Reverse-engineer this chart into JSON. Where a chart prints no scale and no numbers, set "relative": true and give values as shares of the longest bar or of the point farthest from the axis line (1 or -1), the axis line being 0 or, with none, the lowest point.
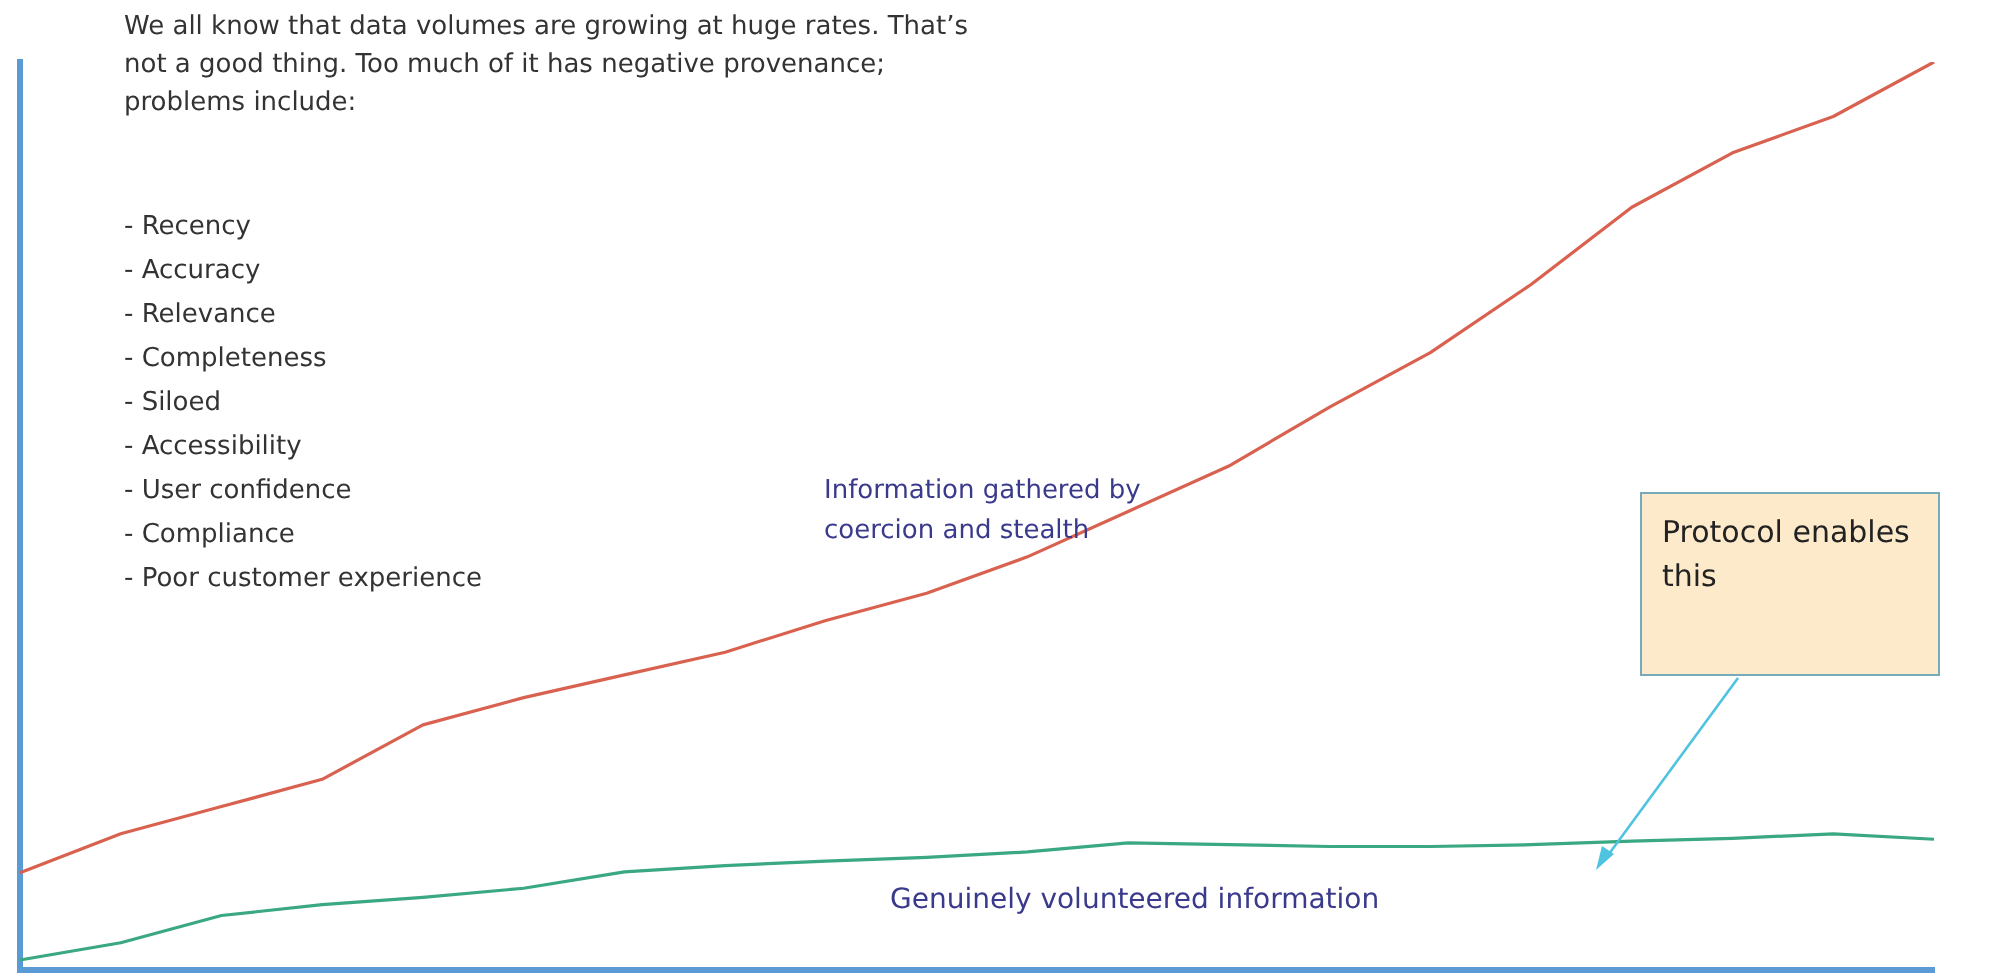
{
  "chart_data": {
    "type": "line",
    "relative": true,
    "legend": false,
    "grid": false,
    "marker": "none",
    "categories": [
      null,
      null,
      null,
      null,
      null,
      null,
      null,
      null,
      null,
      null,
      null,
      null,
      null,
      null,
      null,
      null,
      null,
      null,
      null,
      null
    ],
    "series": [
      {
        "name": "Information gathered by coercion and stealth",
        "color": "#d9614f",
        "values": [
          0.107,
          0.15,
          0.18,
          0.21,
          0.27,
          0.3,
          0.325,
          0.35,
          0.385,
          0.415,
          0.455,
          0.505,
          0.555,
          0.62,
          0.68,
          0.755,
          0.84,
          0.9,
          0.94,
          1
        ]
      },
      {
        "name": "Genuinely volunteered information",
        "color": "#3aa880",
        "values": [
          0.011,
          0.03,
          0.06,
          0.072,
          0.08,
          0.09,
          0.108,
          0.115,
          0.12,
          0.124,
          0.13,
          0.14,
          0.138,
          0.136,
          0.136,
          0.138,
          0.142,
          0.145,
          0.15,
          0.144
        ]
      }
    ],
    "annotations": [
      "We all know that data volumes are growing at huge rates. That’s not a good thing. Too much of it has negative provenance; problems include:",
      "-  Recency",
      "-  Accuracy",
      "-  Relevance",
      "-  Completeness",
      "-  Siloed",
      "-  Accessibility",
      "-  User confidence",
      "-  Compliance",
      "-  Poor customer experience",
      "Protocol enables this"
    ]
  }
}
